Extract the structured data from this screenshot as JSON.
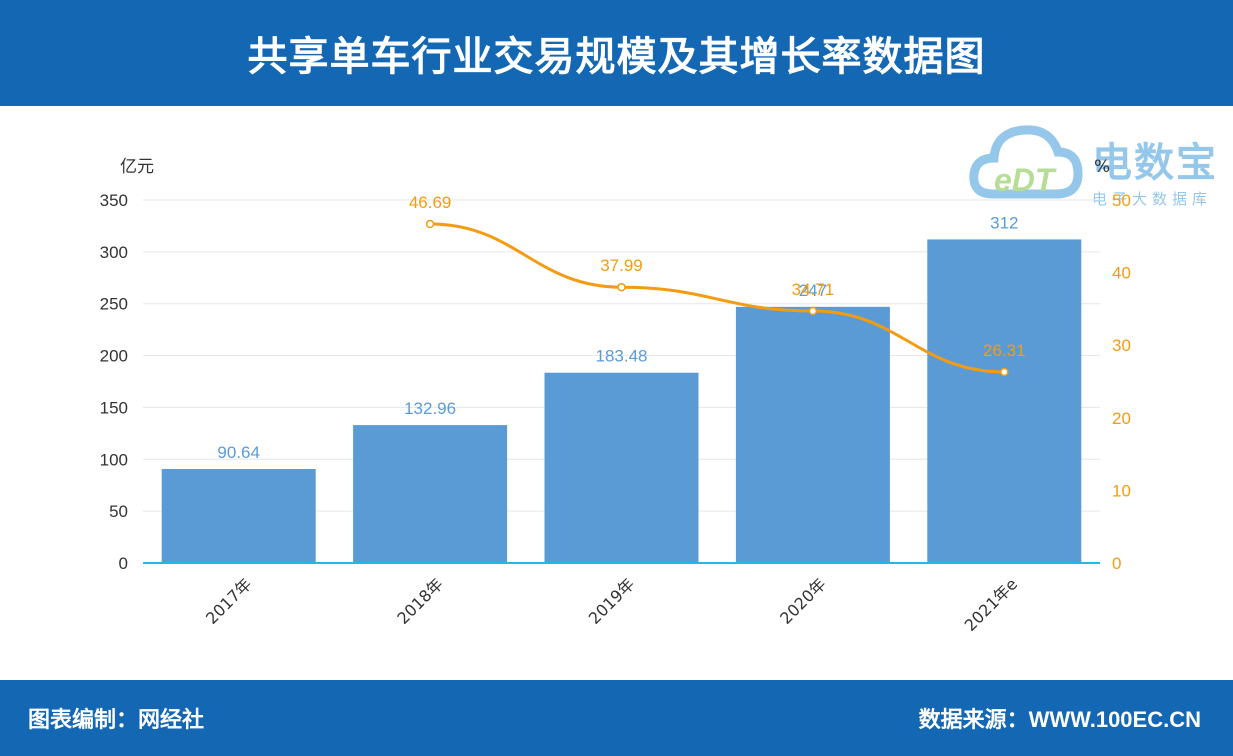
{
  "header": {
    "title": "共享单车行业交易规模及其增长率数据图"
  },
  "footer": {
    "left_text": "图表编制：网经社",
    "right_text": "数据来源：WWW.100EC.CN"
  },
  "watermark": {
    "brand": "电数宝",
    "sub": "电子大数据库",
    "logo_text": "eDT"
  },
  "colors": {
    "banner": "#1467b3",
    "bar": "#5b9bd5",
    "line": "#f39c12",
    "bar_label": "#5b9bd5"
  },
  "chart_data": {
    "type": "bar",
    "categories": [
      "2017年",
      "2018年",
      "2019年",
      "2020年",
      "2021年e"
    ],
    "series": [
      {
        "type": "bar",
        "axis": "left",
        "values": [
          90.64,
          132.96,
          183.48,
          247,
          312
        ]
      },
      {
        "type": "line",
        "axis": "right",
        "values": [
          null,
          46.69,
          37.99,
          34.71,
          26.31
        ]
      }
    ],
    "bar_labels": [
      "90.64",
      "132.96",
      "183.48",
      "247",
      "312"
    ],
    "line_labels": [
      "",
      "46.69",
      "37.99",
      "34.71",
      "26.31"
    ],
    "y_left": {
      "unit": "亿元",
      "range": [
        0,
        350
      ],
      "ticks": [
        "0",
        "50",
        "100",
        "150",
        "200",
        "250",
        "300",
        "350"
      ]
    },
    "y_right": {
      "unit": "%",
      "range": [
        0,
        50
      ],
      "ticks": [
        "0",
        "10",
        "20",
        "30",
        "40",
        "50"
      ]
    },
    "grid": true
  }
}
